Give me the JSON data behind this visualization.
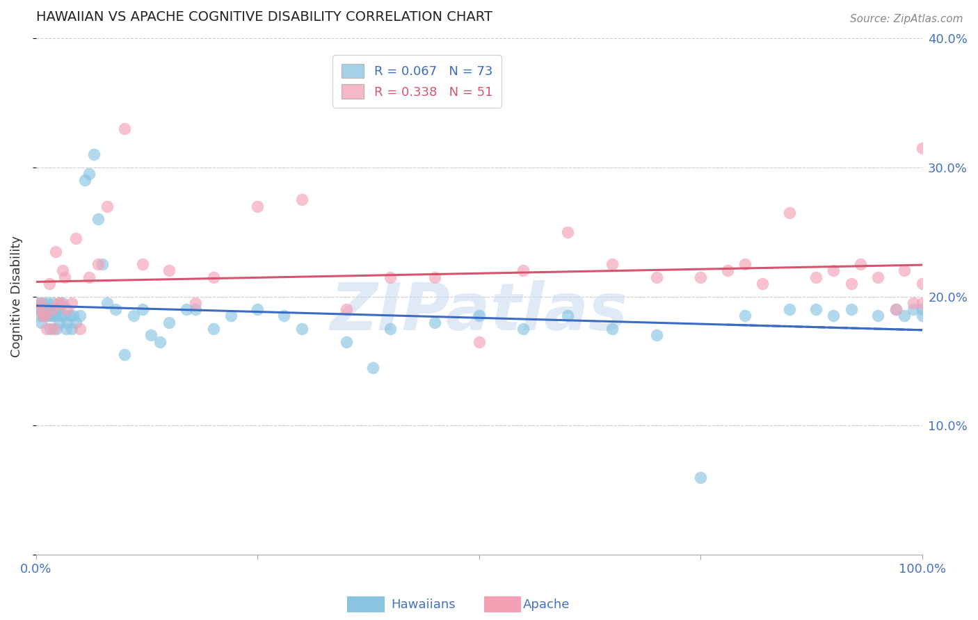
{
  "title": "HAWAIIAN VS APACHE COGNITIVE DISABILITY CORRELATION CHART",
  "source": "Source: ZipAtlas.com",
  "ylabel": "Cognitive Disability",
  "watermark": "ZIPatlas",
  "hawaiian_color": "#89c4e1",
  "apache_color": "#f4a0b5",
  "hawaiian_line_color": "#3b6bc4",
  "apache_line_color": "#d6546e",
  "axis_color": "#4472C4",
  "grid_color": "#cccccc",
  "background_color": "#ffffff",
  "xlim": [
    0,
    1.0
  ],
  "ylim": [
    0,
    0.4
  ],
  "hawaiian_R": 0.067,
  "hawaiian_N": 73,
  "apache_R": 0.338,
  "apache_N": 51,
  "hawaiian_x": [
    0.002,
    0.004,
    0.005,
    0.006,
    0.007,
    0.008,
    0.009,
    0.01,
    0.011,
    0.012,
    0.013,
    0.014,
    0.015,
    0.016,
    0.018,
    0.019,
    0.02,
    0.021,
    0.022,
    0.023,
    0.025,
    0.026,
    0.028,
    0.03,
    0.032,
    0.034,
    0.035,
    0.038,
    0.04,
    0.042,
    0.045,
    0.05,
    0.055,
    0.06,
    0.065,
    0.07,
    0.075,
    0.08,
    0.09,
    0.1,
    0.11,
    0.12,
    0.13,
    0.14,
    0.15,
    0.17,
    0.18,
    0.2,
    0.22,
    0.25,
    0.28,
    0.3,
    0.35,
    0.38,
    0.4,
    0.45,
    0.5,
    0.55,
    0.6,
    0.65,
    0.7,
    0.75,
    0.8,
    0.85,
    0.88,
    0.9,
    0.92,
    0.95,
    0.97,
    0.98,
    0.99,
    1.0,
    1.0
  ],
  "hawaiian_y": [
    0.195,
    0.185,
    0.19,
    0.18,
    0.195,
    0.185,
    0.19,
    0.185,
    0.19,
    0.185,
    0.195,
    0.185,
    0.19,
    0.175,
    0.185,
    0.195,
    0.185,
    0.19,
    0.185,
    0.175,
    0.19,
    0.18,
    0.185,
    0.195,
    0.185,
    0.175,
    0.18,
    0.185,
    0.175,
    0.185,
    0.18,
    0.185,
    0.29,
    0.295,
    0.31,
    0.26,
    0.225,
    0.195,
    0.19,
    0.155,
    0.185,
    0.19,
    0.17,
    0.165,
    0.18,
    0.19,
    0.19,
    0.175,
    0.185,
    0.19,
    0.185,
    0.175,
    0.165,
    0.145,
    0.175,
    0.18,
    0.185,
    0.175,
    0.185,
    0.175,
    0.17,
    0.06,
    0.185,
    0.19,
    0.19,
    0.185,
    0.19,
    0.185,
    0.19,
    0.185,
    0.19,
    0.185,
    0.19
  ],
  "apache_x": [
    0.003,
    0.005,
    0.008,
    0.01,
    0.012,
    0.015,
    0.018,
    0.02,
    0.022,
    0.025,
    0.028,
    0.03,
    0.032,
    0.035,
    0.04,
    0.045,
    0.05,
    0.06,
    0.07,
    0.08,
    0.1,
    0.12,
    0.15,
    0.18,
    0.2,
    0.25,
    0.3,
    0.35,
    0.4,
    0.45,
    0.5,
    0.55,
    0.6,
    0.65,
    0.7,
    0.75,
    0.78,
    0.8,
    0.82,
    0.85,
    0.88,
    0.9,
    0.92,
    0.93,
    0.95,
    0.97,
    0.98,
    0.99,
    1.0,
    1.0,
    1.0
  ],
  "apache_y": [
    0.19,
    0.195,
    0.185,
    0.185,
    0.175,
    0.21,
    0.19,
    0.175,
    0.235,
    0.195,
    0.195,
    0.22,
    0.215,
    0.19,
    0.195,
    0.245,
    0.175,
    0.215,
    0.225,
    0.27,
    0.33,
    0.225,
    0.22,
    0.195,
    0.215,
    0.27,
    0.275,
    0.19,
    0.215,
    0.215,
    0.165,
    0.22,
    0.25,
    0.225,
    0.215,
    0.215,
    0.22,
    0.225,
    0.21,
    0.265,
    0.215,
    0.22,
    0.21,
    0.225,
    0.215,
    0.19,
    0.22,
    0.195,
    0.315,
    0.21,
    0.195
  ]
}
